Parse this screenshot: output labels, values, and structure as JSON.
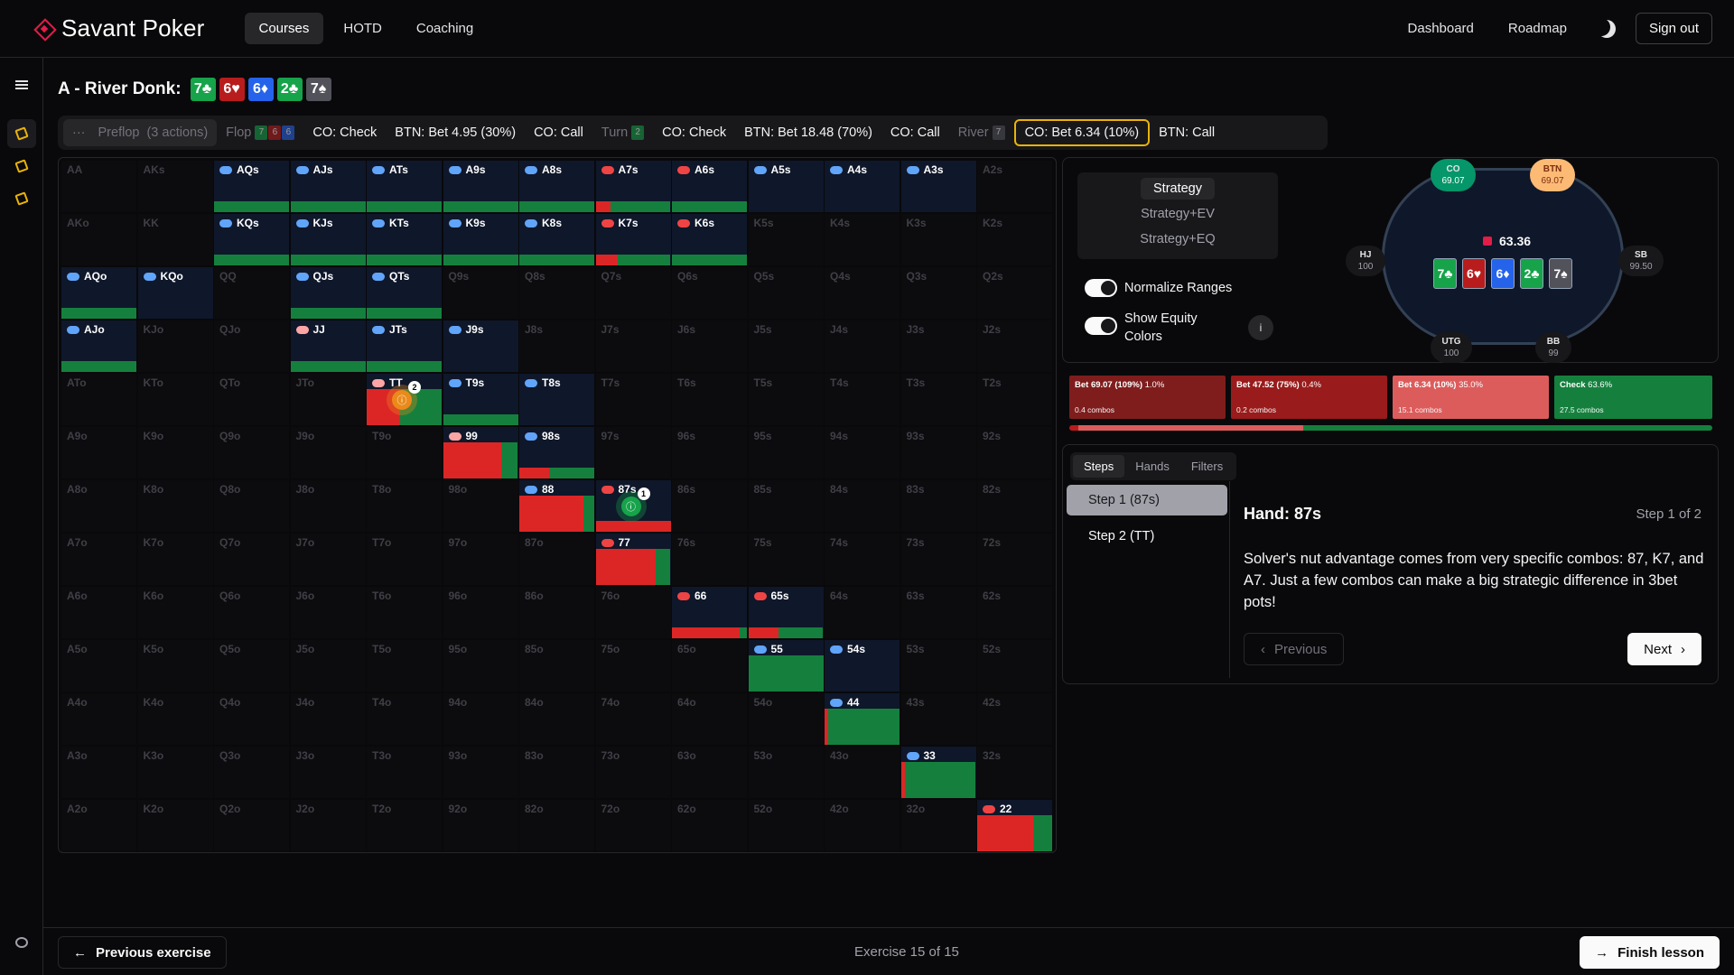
{
  "nav": {
    "logo": "Savant Poker",
    "links": [
      "Courses",
      "HOTD",
      "Coaching"
    ],
    "right": {
      "dashboard": "Dashboard",
      "roadmap": "Roadmap",
      "signout": "Sign out"
    }
  },
  "title": {
    "text": "A - River Donk:",
    "board": [
      {
        "rank": "7",
        "suit": "♣",
        "color": "#16a34a"
      },
      {
        "rank": "6",
        "suit": "♥",
        "color": "#b91c1c"
      },
      {
        "rank": "6",
        "suit": "♦",
        "color": "#2563eb"
      },
      {
        "rank": "2",
        "suit": "♣",
        "color": "#16a34a"
      },
      {
        "rank": "7",
        "suit": "♠",
        "color": "#52525b"
      }
    ]
  },
  "actions": {
    "preflop": "Preflop",
    "preflop_count": "(3 actions)",
    "flop": "Flop",
    "turn": "Turn",
    "river": "River",
    "items": [
      "CO: Check",
      "BTN: Bet 4.95 (30%)",
      "CO: Call",
      "CO: Check",
      "BTN: Bet 18.48 (70%)",
      "CO: Call",
      "CO: Bet 6.34 (10%)",
      "BTN: Call"
    ]
  },
  "grid": {
    "ranks": [
      "A",
      "K",
      "Q",
      "J",
      "T",
      "9",
      "8",
      "7",
      "6",
      "5",
      "4",
      "3",
      "2"
    ],
    "cells": {
      "AQs": {
        "pill": "blue",
        "bar": [
          [
            "#15803d",
            1
          ]
        ]
      },
      "AJs": {
        "pill": "blue",
        "bar": [
          [
            "#15803d",
            1
          ]
        ]
      },
      "ATs": {
        "pill": "blue",
        "bar": [
          [
            "#15803d",
            1
          ]
        ]
      },
      "A9s": {
        "pill": "blue",
        "bar": [
          [
            "#15803d",
            1
          ]
        ]
      },
      "A8s": {
        "pill": "blue",
        "bar": [
          [
            "#15803d",
            1
          ]
        ]
      },
      "A7s": {
        "pill": "red",
        "bar": [
          [
            "#dc2626",
            0.2
          ],
          [
            "#15803d",
            0.8
          ]
        ]
      },
      "A6s": {
        "pill": "red",
        "bar": [
          [
            "#15803d",
            1
          ]
        ]
      },
      "A5s": {
        "pill": "blue"
      },
      "A4s": {
        "pill": "blue"
      },
      "A3s": {
        "pill": "blue"
      },
      "KQs": {
        "pill": "blue",
        "bar": [
          [
            "#15803d",
            1
          ]
        ]
      },
      "KJs": {
        "pill": "blue",
        "bar": [
          [
            "#15803d",
            1
          ]
        ]
      },
      "KTs": {
        "pill": "blue",
        "bar": [
          [
            "#15803d",
            1
          ]
        ]
      },
      "K9s": {
        "pill": "blue",
        "bar": [
          [
            "#15803d",
            1
          ]
        ]
      },
      "K8s": {
        "pill": "blue",
        "bar": [
          [
            "#15803d",
            1
          ]
        ]
      },
      "K7s": {
        "pill": "red",
        "bar": [
          [
            "#dc2626",
            0.3
          ],
          [
            "#15803d",
            0.7
          ]
        ]
      },
      "K6s": {
        "pill": "red",
        "bar": [
          [
            "#15803d",
            1
          ]
        ]
      },
      "AQo": {
        "pill": "blue",
        "bar": [
          [
            "#15803d",
            1
          ]
        ]
      },
      "KQo": {
        "pill": "blue"
      },
      "QJs": {
        "pill": "blue",
        "bar": [
          [
            "#15803d",
            1
          ]
        ]
      },
      "QTs": {
        "pill": "blue",
        "bar": [
          [
            "#15803d",
            1
          ]
        ]
      },
      "AJo": {
        "pill": "blue",
        "bar": [
          [
            "#15803d",
            1
          ]
        ]
      },
      "JJ": {
        "pill": "pink",
        "bar": [
          [
            "#15803d",
            1
          ]
        ]
      },
      "JTs": {
        "pill": "blue",
        "bar": [
          [
            "#15803d",
            1
          ]
        ]
      },
      "J9s": {
        "pill": "blue"
      },
      "TT": {
        "pill": "pink",
        "bar": [
          [
            "#dc2626",
            0.45
          ],
          [
            "#15803d",
            0.55
          ]
        ],
        "tall": true
      },
      "T9s": {
        "pill": "blue",
        "bar": [
          [
            "#15803d",
            1
          ]
        ]
      },
      "T8s": {
        "pill": "blue"
      },
      "99": {
        "pill": "pink",
        "bar": [
          [
            "#dc2626",
            0.78
          ],
          [
            "#15803d",
            0.22
          ]
        ],
        "tall": true
      },
      "98s": {
        "pill": "blue",
        "bar": [
          [
            "#dc2626",
            0.4
          ],
          [
            "#15803d",
            0.6
          ]
        ]
      },
      "88": {
        "pill": "blue",
        "bar": [
          [
            "#dc2626",
            0.85
          ],
          [
            "#15803d",
            0.15
          ]
        ],
        "tall": true
      },
      "87s": {
        "pill": "red",
        "bar": [
          [
            "#dc2626",
            1
          ]
        ]
      },
      "77": {
        "pill": "red",
        "bar": [
          [
            "#dc2626",
            0.8
          ],
          [
            "#15803d",
            0.2
          ]
        ],
        "tall": true
      },
      "66": {
        "pill": "red",
        "bar": [
          [
            "#dc2626",
            0.9
          ],
          [
            "#15803d",
            0.1
          ]
        ]
      },
      "65s": {
        "pill": "red",
        "bar": [
          [
            "#dc2626",
            0.4
          ],
          [
            "#15803d",
            0.6
          ]
        ]
      },
      "55": {
        "pill": "blue",
        "bar": [
          [
            "#15803d",
            1
          ]
        ],
        "tall": true
      },
      "54s": {
        "pill": "blue"
      },
      "44": {
        "pill": "blue",
        "bar": [
          [
            "#dc2626",
            0.05
          ],
          [
            "#15803d",
            0.95
          ]
        ],
        "tall": true
      },
      "33": {
        "pill": "blue",
        "bar": [
          [
            "#dc2626",
            0.05
          ],
          [
            "#15803d",
            0.95
          ]
        ],
        "tall": true
      },
      "22": {
        "pill": "red",
        "bar": [
          [
            "#dc2626",
            0.75
          ],
          [
            "#15803d",
            0.25
          ]
        ],
        "tall": true
      }
    },
    "markers": [
      {
        "hand": "TT",
        "step": "2",
        "color": "#ea8a1a"
      },
      {
        "hand": "87s",
        "step": "1",
        "color": "#16a34a"
      }
    ]
  },
  "strategy_menu": {
    "options": [
      "Strategy",
      "Strategy+EV",
      "Strategy+EQ"
    ],
    "selected": 0
  },
  "toggles": {
    "normalize": "Normalize Ranges",
    "equity": "Show Equity Colors"
  },
  "table": {
    "pot": "63.36",
    "seats": [
      {
        "name": "CO",
        "stack": "69.07"
      },
      {
        "name": "BTN",
        "stack": "69.07"
      },
      {
        "name": "HJ",
        "stack": "100"
      },
      {
        "name": "SB",
        "stack": "99.50"
      },
      {
        "name": "UTG",
        "stack": "100"
      },
      {
        "name": "BB",
        "stack": "99"
      }
    ],
    "active_colors": {
      "CO": "#059669",
      "BTN": "#fdba74"
    }
  },
  "strategy_boxes": [
    {
      "label": "Bet 69.07 (109%)",
      "pct": "1.0%",
      "combos": "0.4 combos",
      "color": "#7f1d1d",
      "freq": 0.01
    },
    {
      "label": "Bet 47.52 (75%)",
      "pct": "0.4%",
      "combos": "0.2 combos",
      "color": "#991b1b",
      "freq": 0.004
    },
    {
      "label": "Bet 6.34 (10%)",
      "pct": "35.0%",
      "combos": "15.1 combos",
      "color": "#dc5c5c",
      "freq": 0.35
    },
    {
      "label": "Check",
      "pct": "63.6%",
      "combos": "27.5 combos",
      "color": "#15803d",
      "freq": 0.636
    }
  ],
  "lesson": {
    "tabs": [
      "Steps",
      "Hands",
      "Filters"
    ],
    "steps": [
      "Step 1 (87s)",
      "Step 2 (TT)"
    ],
    "hand_title": "Hand: 87s",
    "step_counter": "Step 1 of 2",
    "text": "Solver's nut advantage comes from very specific combos: 87, K7, and A7. Just a few combos can make a big strategic difference in 3bet pots!",
    "previous": "Previous",
    "next": "Next"
  },
  "footer": {
    "prev": "Previous exercise",
    "center": "Exercise 15 of 15",
    "finish": "Finish lesson"
  }
}
